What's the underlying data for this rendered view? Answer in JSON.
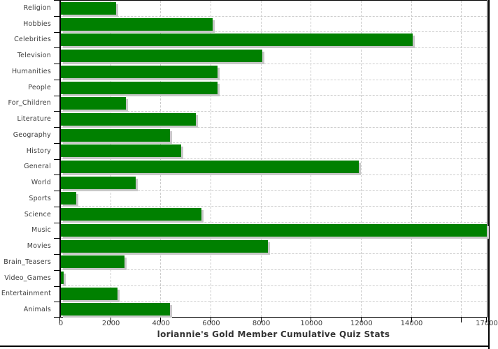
{
  "chart_data": {
    "type": "bar",
    "orientation": "horizontal",
    "title": "loriannie's Gold Member Cumulative Quiz Stats",
    "categories": [
      "Religion",
      "Hobbies",
      "Celebrities",
      "Television",
      "Humanities",
      "People",
      "For_Children",
      "Literature",
      "Geography",
      "History",
      "General",
      "World",
      "Sports",
      "Science",
      "Music",
      "Movies",
      "Brain_Teasers",
      "Video_Games",
      "Entertainment",
      "Animals"
    ],
    "values": [
      2200,
      6050,
      14050,
      8050,
      6250,
      6250,
      2600,
      5400,
      4350,
      4800,
      11900,
      3000,
      620,
      5600,
      17000,
      8250,
      2550,
      100,
      2270,
      4350
    ],
    "xlabel": "",
    "ylabel": "",
    "xlim": [
      0,
      17000
    ],
    "x_ticks": [
      {
        "value": 0,
        "label": "0"
      },
      {
        "value": 2000,
        "label": "2000"
      },
      {
        "value": 4000,
        "label": "4000"
      },
      {
        "value": 6000,
        "label": "6000"
      },
      {
        "value": 8000,
        "label": "8000"
      },
      {
        "value": 10000,
        "label": "10000"
      },
      {
        "value": 12000,
        "label": "12000"
      },
      {
        "value": 14000,
        "label": "14000"
      },
      {
        "value": 16000,
        "label": ""
      },
      {
        "value": 17000,
        "label": "17000"
      }
    ],
    "grid": "dashed vertical and horizontal band lines",
    "legend_position": "none",
    "bar_color": "#008000",
    "bar_shadow_color": "#c8c8c8",
    "grid_color": "#cccccc",
    "axis_color": "#000000",
    "label_color": "#3d3d3d",
    "title_color": "#333333",
    "background_color": "#ffffff"
  }
}
